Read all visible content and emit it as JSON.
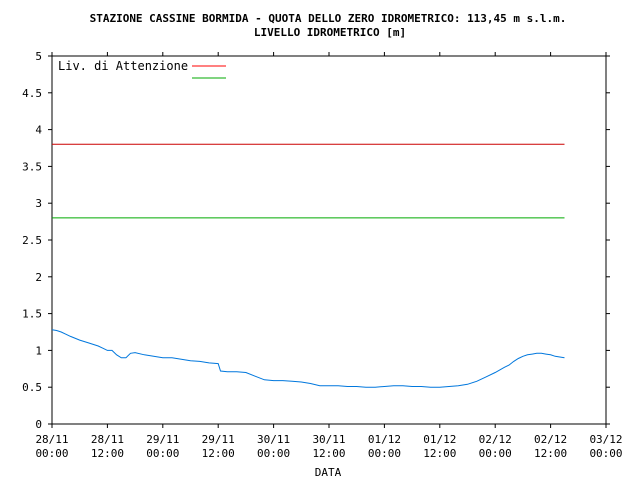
{
  "chart_data": {
    "type": "line",
    "title": "STAZIONE CASSINE BORMIDA - QUOTA DELLO ZERO IDROMETRICO: 113,45 m s.l.m.",
    "subtitle": "LIVELLO IDROMETRICO [m]",
    "xlabel": "DATA",
    "ylabel": "",
    "ylim": [
      0,
      5
    ],
    "yticks": [
      "0",
      "0.5",
      "1",
      "1.5",
      "2",
      "2.5",
      "3",
      "3.5",
      "4",
      "4.5",
      "5"
    ],
    "xlim_hours": [
      0,
      120
    ],
    "xticks": [
      [
        "28/11",
        "00:00"
      ],
      [
        "28/11",
        "12:00"
      ],
      [
        "29/11",
        "00:00"
      ],
      [
        "29/11",
        "12:00"
      ],
      [
        "30/11",
        "00:00"
      ],
      [
        "30/11",
        "12:00"
      ],
      [
        "01/12",
        "00:00"
      ],
      [
        "01/12",
        "12:00"
      ],
      [
        "02/12",
        "00:00"
      ],
      [
        "02/12",
        "12:00"
      ],
      [
        "03/12",
        "00:00"
      ]
    ],
    "grid": false,
    "legend": {
      "position": "top-left",
      "entries": [
        {
          "label": "Liv. di Attenzione",
          "color": "#ff0000"
        },
        {
          "label": "",
          "color": "#00aa00"
        }
      ]
    },
    "series": [
      {
        "name": "Liv. di Attenzione",
        "color": "#cc0000",
        "x": [
          0,
          111
        ],
        "y": [
          3.8,
          3.8
        ]
      },
      {
        "name": "",
        "color": "#00aa00",
        "x": [
          0,
          111
        ],
        "y": [
          2.8,
          2.8
        ]
      },
      {
        "name": "",
        "color": "#0077dd",
        "x": [
          0,
          1,
          2,
          3,
          4,
          6,
          8,
          10,
          11,
          12,
          13,
          14,
          15,
          16,
          17,
          18,
          20,
          22,
          24,
          26,
          28,
          30,
          32,
          34,
          36,
          36.5,
          38,
          40,
          42,
          44,
          46,
          48,
          50,
          52,
          54,
          56,
          58,
          60,
          62,
          64,
          66,
          68,
          70,
          72,
          74,
          76,
          78,
          80,
          82,
          84,
          86,
          88,
          90,
          92,
          94,
          96,
          98,
          99,
          100,
          101,
          102,
          103,
          104,
          105,
          106,
          107,
          108,
          109,
          110,
          111
        ],
        "y": [
          1.28,
          1.27,
          1.25,
          1.22,
          1.19,
          1.14,
          1.1,
          1.06,
          1.03,
          1.0,
          1.0,
          0.94,
          0.9,
          0.9,
          0.96,
          0.97,
          0.94,
          0.92,
          0.9,
          0.9,
          0.88,
          0.86,
          0.85,
          0.83,
          0.82,
          0.72,
          0.71,
          0.71,
          0.7,
          0.65,
          0.6,
          0.59,
          0.59,
          0.58,
          0.57,
          0.55,
          0.52,
          0.52,
          0.52,
          0.51,
          0.51,
          0.5,
          0.5,
          0.51,
          0.52,
          0.52,
          0.51,
          0.51,
          0.5,
          0.5,
          0.51,
          0.52,
          0.54,
          0.58,
          0.64,
          0.7,
          0.77,
          0.8,
          0.85,
          0.89,
          0.92,
          0.94,
          0.95,
          0.96,
          0.96,
          0.95,
          0.94,
          0.92,
          0.91,
          0.9
        ]
      }
    ]
  }
}
